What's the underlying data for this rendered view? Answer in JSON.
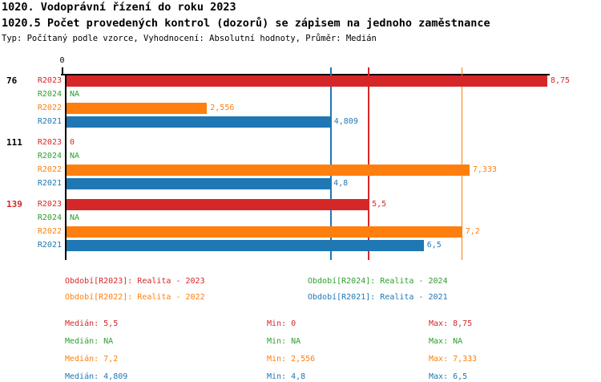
{
  "header": {
    "title_line1": "1020. Vodoprávní řízení do roku 2023",
    "title_line2": "1020.5 Počet provedených kontrol (dozorů) se zápisem na jednoho zaměstnance",
    "subtitle": "Typ: Počítaný podle vzorce, Vyhodnocení: Absolutní hodnoty, Průměr: Medián"
  },
  "chart_data": {
    "type": "bar",
    "orientation": "horizontal",
    "value_axis": {
      "min": 0,
      "max": 8.75,
      "tick_labels": [
        "0"
      ],
      "position": "top",
      "grid": false
    },
    "series": [
      {
        "key": "R2023",
        "name": "Realita - 2023",
        "color": "#d62728"
      },
      {
        "key": "R2024",
        "name": "Realita - 2024",
        "color": "#2ca02c"
      },
      {
        "key": "R2022",
        "name": "Realita - 2022",
        "color": "#ff7f0e"
      },
      {
        "key": "R2021",
        "name": "Realita - 2021",
        "color": "#1f77b4"
      }
    ],
    "groups": [
      {
        "label": "76",
        "label_color": "#000000",
        "bars": [
          {
            "series": "R2023",
            "value": 8.75,
            "display": "8,75"
          },
          {
            "series": "R2024",
            "value": null,
            "display": "NA"
          },
          {
            "series": "R2022",
            "value": 2.556,
            "display": "2,556"
          },
          {
            "series": "R2021",
            "value": 4.809,
            "display": "4,809"
          }
        ]
      },
      {
        "label": "111",
        "label_color": "#000000",
        "bars": [
          {
            "series": "R2023",
            "value": 0,
            "display": "0"
          },
          {
            "series": "R2024",
            "value": null,
            "display": "NA"
          },
          {
            "series": "R2022",
            "value": 7.333,
            "display": "7,333"
          },
          {
            "series": "R2021",
            "value": 4.8,
            "display": "4,8"
          }
        ]
      },
      {
        "label": "139",
        "label_color": "#d62728",
        "bars": [
          {
            "series": "R2023",
            "value": 5.5,
            "display": "5,5"
          },
          {
            "series": "R2024",
            "value": null,
            "display": "NA"
          },
          {
            "series": "R2022",
            "value": 7.2,
            "display": "7,2"
          },
          {
            "series": "R2021",
            "value": 6.5,
            "display": "6,5"
          }
        ]
      }
    ],
    "median_lines": [
      {
        "series": "R2021",
        "value": 4.809,
        "color": "#1f77b4"
      },
      {
        "series": "R2023",
        "value": 5.5,
        "color": "#d62728"
      },
      {
        "series": "R2022",
        "value": 7.2,
        "color": "#ff7f0e"
      }
    ]
  },
  "legend": {
    "items": [
      {
        "text": "Období[R2023]: Realita - 2023",
        "color": "#d62728"
      },
      {
        "text": "Období[R2024]: Realita - 2024",
        "color": "#2ca02c"
      },
      {
        "text": "Období[R2022]: Realita - 2022",
        "color": "#ff7f0e"
      },
      {
        "text": "Období[R2021]: Realita - 2021",
        "color": "#1f77b4"
      }
    ]
  },
  "stats": {
    "rows": [
      {
        "series": "R2023",
        "color": "#d62728",
        "median": "Medián: 5,5",
        "min": "Min: 0",
        "max": "Max: 8,75"
      },
      {
        "series": "R2024",
        "color": "#2ca02c",
        "median": "Medián: NA",
        "min": "Min: NA",
        "max": "Max: NA"
      },
      {
        "series": "R2022",
        "color": "#ff7f0e",
        "median": "Medián: 7,2",
        "min": "Min: 2,556",
        "max": "Max: 7,333"
      },
      {
        "series": "R2021",
        "color": "#1f77b4",
        "median": "Medián: 4,809",
        "min": "Min: 4,8",
        "max": "Max: 6,5"
      }
    ]
  }
}
